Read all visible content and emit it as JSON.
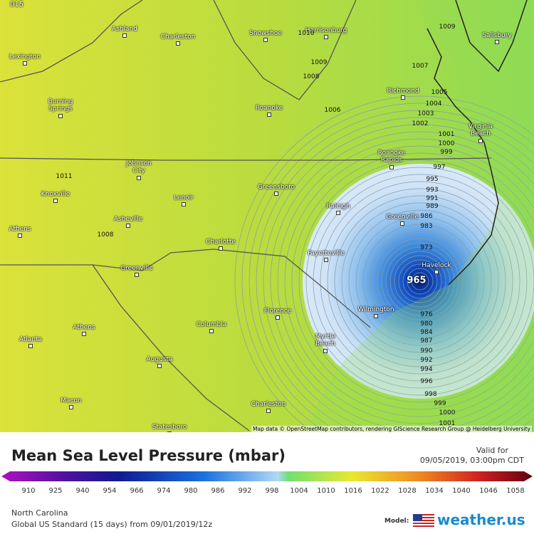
{
  "map": {
    "corner_label": "015",
    "cities": [
      "Ashland",
      "Charleston",
      "Snowshoe",
      "Harrisonburg",
      "Lexington",
      "Richmond",
      "Salisbury",
      "Burning Springs",
      "Roanoke",
      "Virginia Beach",
      "Roanoke Rapids",
      "Johnson City",
      "Knoxville",
      "Lenoir",
      "Greensboro",
      "Raleigh",
      "Asheville",
      "Greenville",
      "Athens",
      "Charlotte",
      "Fayetteville",
      "Havelock",
      "Greenville",
      "Wilmington",
      "Florence",
      "Athens",
      "Columbia",
      "Myrtle Beach",
      "Atlanta",
      "Augusta",
      "Macon",
      "Charleston",
      "Statesboro"
    ],
    "isobar_labels": [
      1009,
      1010,
      1009,
      1008,
      1007,
      1006,
      1005,
      1004,
      1003,
      1002,
      1001,
      1000,
      999,
      997,
      995,
      993,
      991,
      989,
      986,
      983,
      973,
      965,
      1011,
      1008,
      976,
      980,
      984,
      987,
      990,
      992,
      994,
      996,
      998,
      999,
      1000,
      1001
    ],
    "attribution": "Map data © OpenStreetMap contributors, rendering GIScience Research Group @ Heidelberg University"
  },
  "legend": {
    "title": "Mean Sea Level Pressure (mbar)",
    "valid_label": "Valid for",
    "valid_time": "09/05/2019, 03:00pm CDT",
    "scale": [
      910,
      925,
      940,
      954,
      966,
      974,
      980,
      986,
      992,
      998,
      1004,
      1010,
      1016,
      1022,
      1028,
      1034,
      1040,
      1046,
      1058
    ]
  },
  "footer": {
    "region": "North Carolina",
    "model_run": "Global US Standard (15 days) from 09/01/2019/12z",
    "model_label": "Model:",
    "brand": "weather.us"
  }
}
